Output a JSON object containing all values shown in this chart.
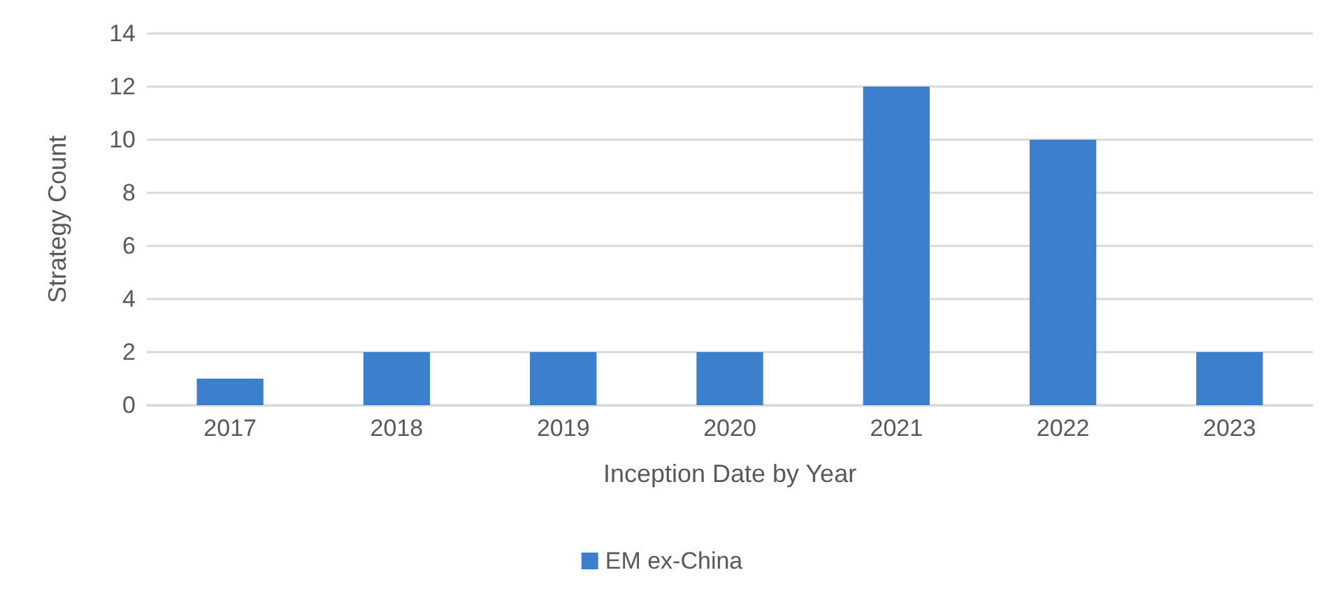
{
  "chart_data": {
    "type": "bar",
    "xlabel": "Inception Date by Year",
    "ylabel": "Strategy Count",
    "categories": [
      "2017",
      "2018",
      "2019",
      "2020",
      "2021",
      "2022",
      "2023"
    ],
    "series": [
      {
        "name": "EM ex-China",
        "color": "#3c7fcd",
        "values": [
          1,
          2,
          2,
          2,
          12,
          10,
          2
        ]
      }
    ],
    "ylim": [
      0,
      14
    ],
    "yticks": [
      0,
      2,
      4,
      6,
      8,
      10,
      12,
      14
    ],
    "grid": "y",
    "legend": "bottom"
  }
}
